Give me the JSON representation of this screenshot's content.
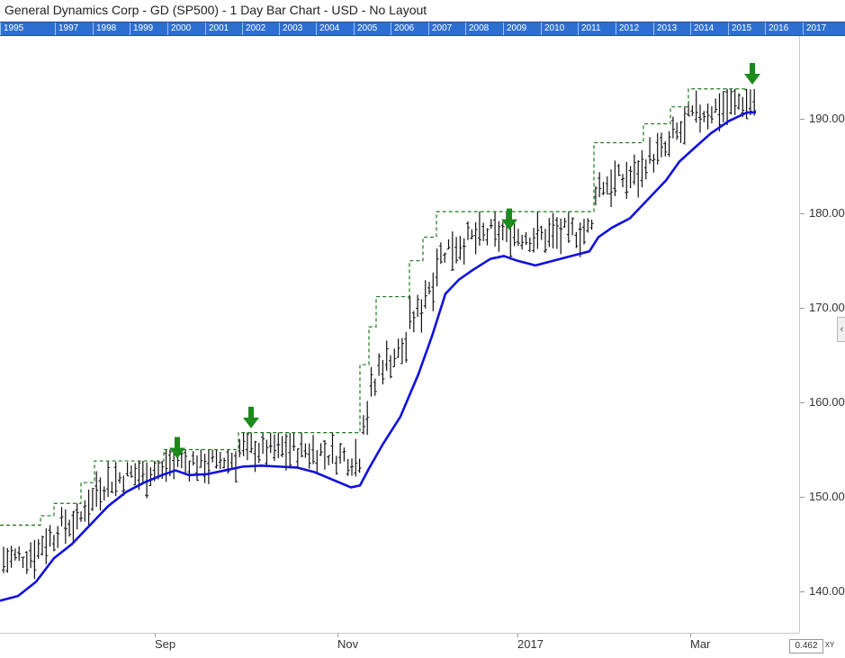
{
  "title": "General Dynamics Corp - GD (SP500) - 1 Day Bar Chart - USD - No Layout",
  "year_strip": [
    "1995",
    "1997",
    "1998",
    "1999",
    "2000",
    "2001",
    "2002",
    "2003",
    "2004",
    "2005",
    "2006",
    "2007",
    "2008",
    "2009",
    "2010",
    "2011",
    "2012",
    "2013",
    "2014",
    "2015",
    "2016",
    "2017"
  ],
  "zoom_value": "0.462",
  "xy_label": "XY",
  "scroll_tab_icon": "chevron-left-icon",
  "colors": {
    "bars": "#111111",
    "moving_average": "#1010e0",
    "step_line": "#1a7a1a",
    "arrow": "#1a8a1a",
    "year_strip": "#2d6fd0"
  },
  "chart_data": {
    "type": "ohlc-bar",
    "title": "General Dynamics Corp - GD (SP500) - 1 Day Bar Chart - USD - No Layout",
    "x_ticks": [
      "Sep",
      "Nov",
      "2017",
      "Mar"
    ],
    "y_ticks": [
      "140.00",
      "150.00",
      "160.00",
      "170.00",
      "180.00",
      "190.00"
    ],
    "ylim": [
      135.6,
      198.8
    ],
    "grid": false,
    "moving_average": [
      [
        0,
        139.0
      ],
      [
        20,
        139.5
      ],
      [
        40,
        141.0
      ],
      [
        60,
        143.5
      ],
      [
        80,
        145.0
      ],
      [
        100,
        147.0
      ],
      [
        120,
        149.0
      ],
      [
        140,
        150.5
      ],
      [
        160,
        151.5
      ],
      [
        180,
        152.3
      ],
      [
        195,
        152.8
      ],
      [
        210,
        152.3
      ],
      [
        230,
        152.4
      ],
      [
        250,
        152.8
      ],
      [
        270,
        153.2
      ],
      [
        290,
        153.3
      ],
      [
        310,
        153.2
      ],
      [
        330,
        153.1
      ],
      [
        350,
        152.6
      ],
      [
        370,
        151.8
      ],
      [
        390,
        151.0
      ],
      [
        400,
        151.2
      ],
      [
        410,
        153.0
      ],
      [
        425,
        155.5
      ],
      [
        445,
        158.5
      ],
      [
        465,
        163.0
      ],
      [
        480,
        167.0
      ],
      [
        495,
        171.5
      ],
      [
        510,
        173.0
      ],
      [
        525,
        174.0
      ],
      [
        545,
        175.2
      ],
      [
        560,
        175.5
      ],
      [
        575,
        175.0
      ],
      [
        595,
        174.5
      ],
      [
        615,
        175.0
      ],
      [
        635,
        175.5
      ],
      [
        655,
        176.0
      ],
      [
        665,
        177.5
      ],
      [
        680,
        178.5
      ],
      [
        700,
        179.5
      ],
      [
        720,
        181.5
      ],
      [
        740,
        183.5
      ],
      [
        755,
        185.5
      ],
      [
        770,
        186.8
      ],
      [
        790,
        188.5
      ],
      [
        810,
        189.8
      ],
      [
        830,
        190.7
      ],
      [
        840,
        190.7
      ]
    ],
    "resistance_steps": [
      [
        0,
        147.0
      ],
      [
        45,
        147.0
      ],
      [
        45,
        148.0
      ],
      [
        60,
        148.0
      ],
      [
        60,
        149.3
      ],
      [
        90,
        149.3
      ],
      [
        90,
        151.5
      ],
      [
        105,
        151.5
      ],
      [
        105,
        153.8
      ],
      [
        182,
        153.8
      ],
      [
        182,
        155.0
      ],
      [
        265,
        155.0
      ],
      [
        265,
        156.8
      ],
      [
        400,
        156.8
      ],
      [
        400,
        164.0
      ],
      [
        410,
        164.0
      ],
      [
        410,
        168.0
      ],
      [
        418,
        168.0
      ],
      [
        418,
        171.2
      ],
      [
        455,
        171.2
      ],
      [
        455,
        175.0
      ],
      [
        470,
        175.0
      ],
      [
        470,
        177.5
      ],
      [
        485,
        177.5
      ],
      [
        485,
        180.2
      ],
      [
        660,
        180.2
      ],
      [
        660,
        187.5
      ],
      [
        715,
        187.5
      ],
      [
        715,
        189.5
      ],
      [
        745,
        189.5
      ],
      [
        745,
        191.3
      ],
      [
        765,
        191.3
      ],
      [
        765,
        193.2
      ],
      [
        830,
        193.2
      ]
    ],
    "signal_arrows": [
      {
        "x": 197,
        "y": 155.0
      },
      {
        "x": 279,
        "y": 158.2
      },
      {
        "x": 566,
        "y": 179.2
      },
      {
        "x": 836,
        "y": 194.6
      }
    ]
  }
}
